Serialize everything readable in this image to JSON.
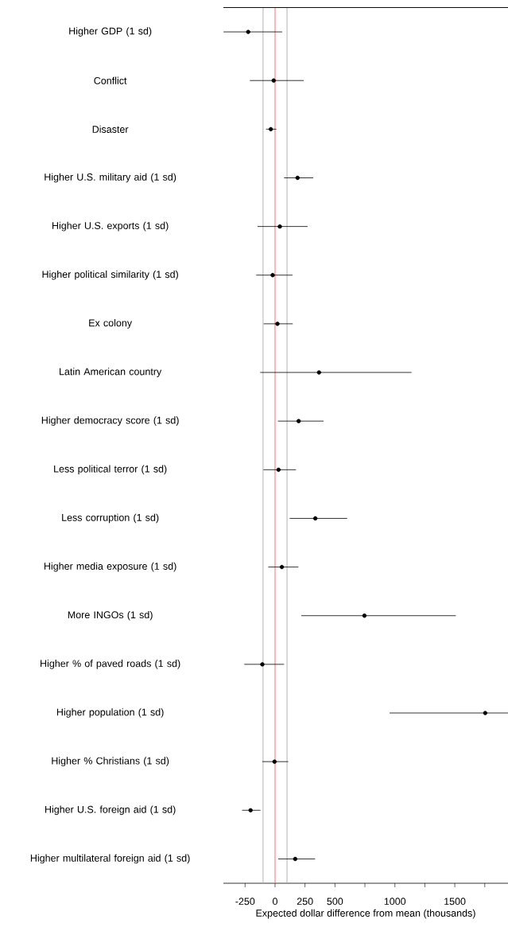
{
  "chart_data": {
    "type": "scatter",
    "orientation": "horizontal",
    "xlabel": "Expected dollar difference from mean (thousands)",
    "categories": [
      "Higher GDP (1 sd)",
      "Conflict",
      "Disaster",
      "Higher U.S. military aid (1 sd)",
      "Higher U.S. exports (1 sd)",
      "Higher political similarity (1 sd)",
      "Ex colony",
      "Latin American country",
      "Higher democracy score (1 sd)",
      "Less political terror (1 sd)",
      "Less corruption (1 sd)",
      "Higher media exposure (1 sd)",
      "More INGOs (1 sd)",
      "Higher % of paved roads (1 sd)",
      "Higher population (1 sd)",
      "Higher % Christians (1 sd)",
      "Higher U.S. foreign aid (1 sd)",
      "Higher multilateral foreign aid (1 sd)"
    ],
    "values": [
      -224,
      -11,
      -35,
      188,
      40,
      -20,
      20,
      367,
      197,
      29,
      336,
      57,
      746,
      -106,
      1754,
      -4,
      -204,
      168
    ],
    "errors": [
      [
        -430,
        60
      ],
      [
        -210,
        239
      ],
      [
        -75,
        11
      ],
      [
        75,
        319
      ],
      [
        -146,
        272
      ],
      [
        -157,
        146
      ],
      [
        -95,
        148
      ],
      [
        -124,
        1139
      ],
      [
        24,
        405
      ],
      [
        -97,
        175
      ],
      [
        122,
        602
      ],
      [
        -57,
        195
      ],
      [
        219,
        1509
      ],
      [
        -257,
        75
      ],
      [
        956,
        1944
      ],
      [
        -106,
        110
      ],
      [
        -275,
        -122
      ],
      [
        26,
        334
      ]
    ],
    "color": "#000000",
    "marker": "circle",
    "xlim": [
      -431,
      1944
    ],
    "xticks": [
      -250,
      0,
      250,
      500,
      {
        "value": 750,
        "label": null
      },
      1000,
      {
        "value": 1250,
        "label": null
      },
      1500,
      {
        "value": 1750,
        "label": null
      }
    ],
    "ref_lines": [
      {
        "axis": "x",
        "value": -100,
        "color": "#b3b3b3"
      },
      {
        "axis": "x",
        "value": 100,
        "color": "#b3b3b3"
      },
      {
        "axis": "x",
        "value": 0,
        "color": "#ff7070"
      }
    ]
  }
}
